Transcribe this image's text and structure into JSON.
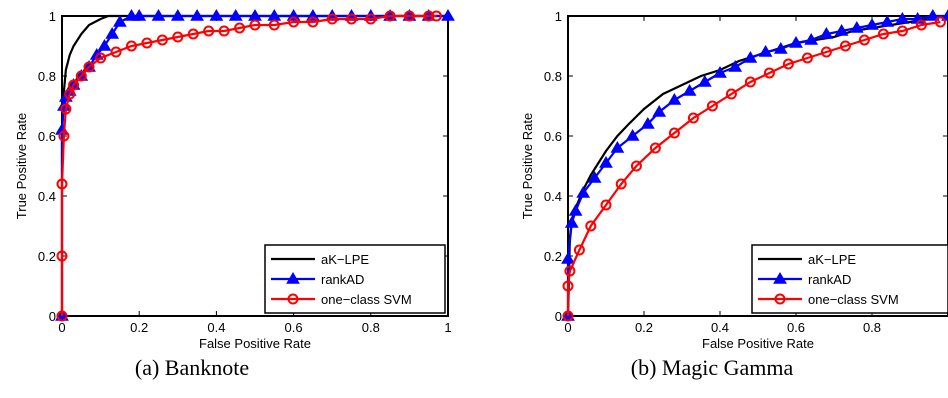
{
  "chart_data": [
    {
      "type": "line",
      "caption": "(a) Banknote",
      "xlabel": "False Positive Rate",
      "ylabel": "True Positive Rate",
      "xlim": [
        0,
        1
      ],
      "ylim": [
        0,
        1
      ],
      "xticks": [
        "0",
        "0.2",
        "0.4",
        "0.6",
        "0.8",
        "1"
      ],
      "yticks": [
        "0",
        "0.2",
        "0.4",
        "0.6",
        "0.8",
        "1"
      ],
      "grid": false,
      "legend_position": "lower-right",
      "series": [
        {
          "name": "aK−LPE",
          "color": "#000000",
          "marker": "none",
          "x": [
            0,
            0,
            0.005,
            0.01,
            0.02,
            0.03,
            0.05,
            0.07,
            0.1,
            0.12,
            0.15,
            0.2,
            1
          ],
          "y": [
            0,
            0.62,
            0.75,
            0.82,
            0.87,
            0.9,
            0.94,
            0.97,
            0.99,
            1,
            1,
            1,
            1
          ]
        },
        {
          "name": "rankAD",
          "color": "#0000ff",
          "marker": "triangle",
          "x": [
            0,
            0,
            0.005,
            0.01,
            0.02,
            0.03,
            0.05,
            0.07,
            0.09,
            0.11,
            0.13,
            0.15,
            0.18,
            0.2,
            0.25,
            0.3,
            0.35,
            0.4,
            0.45,
            0.5,
            0.55,
            0.6,
            0.65,
            0.7,
            0.75,
            0.8,
            0.85,
            0.9,
            0.95,
            1
          ],
          "y": [
            0,
            0.62,
            0.7,
            0.73,
            0.75,
            0.77,
            0.8,
            0.83,
            0.87,
            0.9,
            0.94,
            0.98,
            1,
            1,
            1,
            1,
            1,
            1,
            1,
            1,
            1,
            1,
            1,
            1,
            1,
            1,
            1,
            1,
            1,
            1
          ]
        },
        {
          "name": "one−class SVM",
          "color": "#ff0000",
          "marker": "circle",
          "x": [
            0,
            0,
            0,
            0.005,
            0.01,
            0.02,
            0.03,
            0.05,
            0.07,
            0.1,
            0.14,
            0.18,
            0.22,
            0.26,
            0.3,
            0.34,
            0.38,
            0.42,
            0.46,
            0.5,
            0.55,
            0.6,
            0.65,
            0.7,
            0.75,
            0.8,
            0.85,
            0.9,
            0.95,
            0.97
          ],
          "y": [
            0,
            0.2,
            0.44,
            0.6,
            0.69,
            0.74,
            0.77,
            0.8,
            0.83,
            0.86,
            0.88,
            0.9,
            0.91,
            0.92,
            0.93,
            0.94,
            0.95,
            0.95,
            0.96,
            0.97,
            0.97,
            0.98,
            0.98,
            0.99,
            0.99,
            0.99,
            1,
            1,
            1,
            1
          ]
        }
      ]
    },
    {
      "type": "line",
      "caption": "(b) Magic Gamma",
      "xlabel": "False Positive Rate",
      "ylabel": "True Positive Rate",
      "xlim": [
        0,
        1
      ],
      "ylim": [
        0,
        1
      ],
      "xticks": [
        "0",
        "0.2",
        "0.4",
        "0.6",
        "0.8"
      ],
      "yticks": [
        "0",
        "0.2",
        "0.4",
        "0.6",
        "0.8",
        "1"
      ],
      "grid": false,
      "legend_position": "lower-right",
      "series": [
        {
          "name": "aK−LPE",
          "color": "#000000",
          "marker": "none",
          "x": [
            0,
            0.005,
            0.01,
            0.02,
            0.04,
            0.06,
            0.08,
            0.1,
            0.13,
            0.16,
            0.2,
            0.25,
            0.3,
            0.35,
            0.4,
            0.45,
            0.5,
            0.55,
            0.6,
            0.65,
            0.7,
            0.75,
            0.8,
            0.85,
            0.9,
            0.95,
            1
          ],
          "y": [
            0,
            0.26,
            0.32,
            0.36,
            0.42,
            0.47,
            0.51,
            0.55,
            0.6,
            0.64,
            0.69,
            0.74,
            0.77,
            0.8,
            0.82,
            0.85,
            0.87,
            0.89,
            0.91,
            0.92,
            0.93,
            0.95,
            0.96,
            0.97,
            0.98,
            0.99,
            1
          ]
        },
        {
          "name": "rankAD",
          "color": "#0000ff",
          "marker": "triangle",
          "x": [
            0,
            0,
            0.01,
            0.02,
            0.04,
            0.07,
            0.1,
            0.13,
            0.17,
            0.21,
            0.24,
            0.28,
            0.32,
            0.36,
            0.4,
            0.44,
            0.48,
            0.52,
            0.56,
            0.6,
            0.64,
            0.68,
            0.72,
            0.76,
            0.8,
            0.84,
            0.88,
            0.92,
            0.96,
            1
          ],
          "y": [
            0,
            0.19,
            0.31,
            0.35,
            0.41,
            0.46,
            0.51,
            0.56,
            0.6,
            0.64,
            0.68,
            0.72,
            0.75,
            0.78,
            0.81,
            0.83,
            0.86,
            0.88,
            0.89,
            0.91,
            0.92,
            0.94,
            0.95,
            0.96,
            0.97,
            0.98,
            0.99,
            0.99,
            1,
            1
          ]
        },
        {
          "name": "one−class SVM",
          "color": "#ff0000",
          "marker": "circle",
          "x": [
            0,
            0,
            0.005,
            0.03,
            0.06,
            0.1,
            0.14,
            0.18,
            0.23,
            0.28,
            0.33,
            0.38,
            0.43,
            0.48,
            0.53,
            0.58,
            0.63,
            0.68,
            0.73,
            0.78,
            0.83,
            0.88,
            0.93,
            0.98
          ],
          "y": [
            0,
            0.1,
            0.15,
            0.22,
            0.3,
            0.37,
            0.44,
            0.5,
            0.56,
            0.61,
            0.66,
            0.7,
            0.74,
            0.78,
            0.81,
            0.84,
            0.86,
            0.88,
            0.9,
            0.92,
            0.94,
            0.95,
            0.97,
            0.98
          ]
        }
      ]
    }
  ]
}
